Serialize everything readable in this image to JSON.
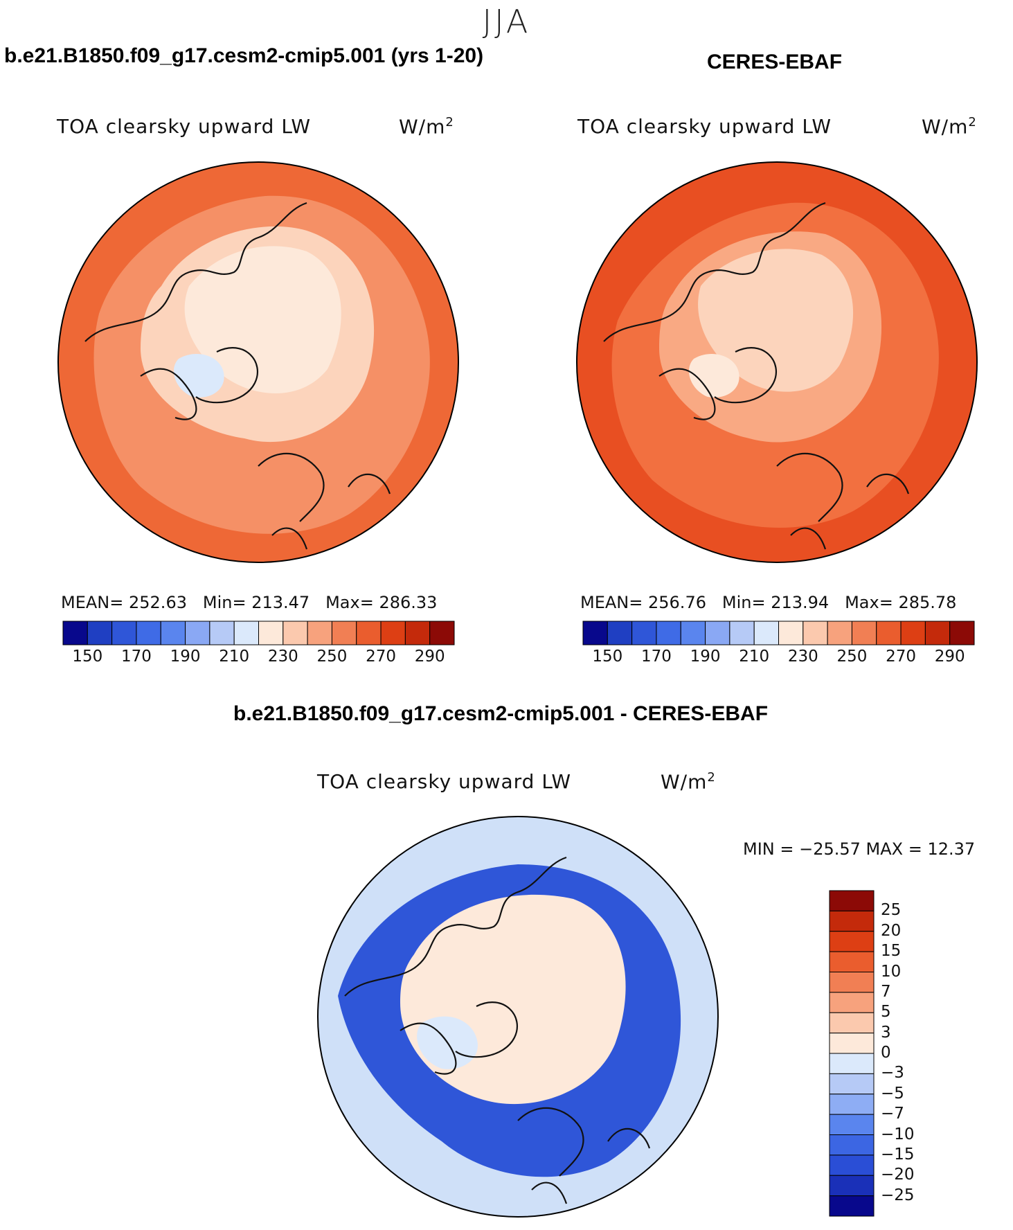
{
  "season_title": "JJA",
  "panels": [
    {
      "header": "b.e21.B1850.f09_g17.cesm2-cmip5.001 (yrs 1-20)",
      "variable": "TOA clearsky upward LW",
      "units_base": "W/m",
      "units_exp": "2",
      "mean_label": "MEAN=",
      "mean_value": "252.63",
      "min_label": "Min=",
      "min_value": "213.47",
      "max_label": "Max=",
      "max_value": "286.33"
    },
    {
      "header": "CERES-EBAF",
      "variable": "TOA clearsky upward LW",
      "units_base": "W/m",
      "units_exp": "2",
      "mean_label": "MEAN=",
      "mean_value": "256.76",
      "min_label": "Min=",
      "min_value": "213.94",
      "max_label": "Max=",
      "max_value": "285.78"
    }
  ],
  "abs_colorbar": {
    "colors": [
      "#08088c",
      "#1f3fc2",
      "#2f56d8",
      "#3f6be6",
      "#5a85ee",
      "#8aa8f4",
      "#b6caf6",
      "#dbe9fb",
      "#fde9da",
      "#fbc9ae",
      "#f7a27d",
      "#f17f54",
      "#ea5d2e",
      "#dd3f14",
      "#c42a0b",
      "#8c0a06"
    ],
    "tick_labels": [
      "150",
      "170",
      "190",
      "210",
      "230",
      "250",
      "270",
      "290"
    ]
  },
  "difference": {
    "header": "b.e21.B1850.f09_g17.cesm2-cmip5.001 - CERES-EBAF",
    "variable": "TOA clearsky upward LW",
    "units_base": "W/m",
    "units_exp": "2",
    "minmax_text": "MIN = −25.57 MAX =   12.37",
    "colorbar": {
      "colors": [
        "#08088c",
        "#1a30b8",
        "#2a4ed6",
        "#3c66e3",
        "#5a85ee",
        "#8eadf4",
        "#b6caf6",
        "#dbe9fb",
        "#fde9da",
        "#fbc9ae",
        "#f7a27d",
        "#f17f54",
        "#ea5d2e",
        "#dd3f14",
        "#c42a0b",
        "#8c0a06"
      ],
      "tick_labels": [
        "25",
        "20",
        "15",
        "10",
        "7",
        "5",
        "3",
        "0",
        "−3",
        "−5",
        "−7",
        "−10",
        "−15",
        "−20",
        "−25"
      ]
    }
  },
  "map_fill": {
    "model": {
      "outer": "#ee6836",
      "mid": "#f59066",
      "inner": "#fcd4bc",
      "core": "#fde9da",
      "greenland_core": "#dbe9fb"
    },
    "ceres": {
      "outer": "#e84f22",
      "mid": "#f27040",
      "inner": "#f9a983",
      "core": "#fcd4bc",
      "greenland_core": "#fde9da"
    },
    "diff": {
      "outer": "#cfe0f8",
      "ring": "#2f56d8",
      "inner": "#fde9da",
      "core": "#dbe9fb"
    }
  }
}
